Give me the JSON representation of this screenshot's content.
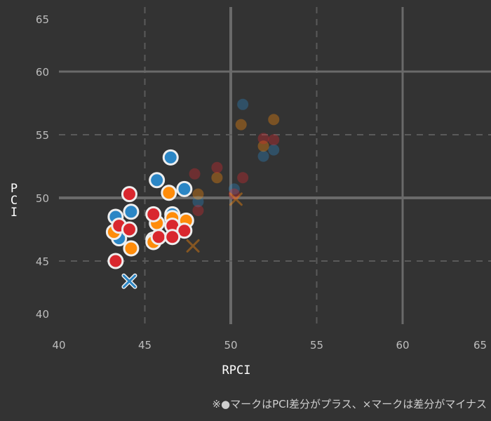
{
  "chart_data": {
    "type": "scatter",
    "title": "",
    "xlabel": "RPCI",
    "ylabel": "PCI",
    "xlim": [
      40,
      65
    ],
    "ylim": [
      40,
      65
    ],
    "xticks": [
      40,
      45,
      50,
      55,
      60,
      65
    ],
    "yticks": [
      40,
      45,
      50,
      55,
      60,
      65
    ],
    "grid": true,
    "colors": {
      "blue": "#2b86c5",
      "orange": "#ff8c0a",
      "red": "#d9272e",
      "outline": "#eeeeee"
    },
    "series": [
      {
        "name": "blue",
        "highlighted": true,
        "marker": "circle",
        "points": [
          [
            46.5,
            53.2
          ],
          [
            45.7,
            51.4
          ],
          [
            47.3,
            50.7
          ],
          [
            43.3,
            48.5
          ],
          [
            44.2,
            48.9
          ],
          [
            46.6,
            48.7
          ],
          [
            43.5,
            46.8
          ],
          [
            45.5,
            46.7
          ]
        ]
      },
      {
        "name": "orange",
        "highlighted": true,
        "marker": "circle",
        "points": [
          [
            46.4,
            50.4
          ],
          [
            43.2,
            47.3
          ],
          [
            45.7,
            48.0
          ],
          [
            47.4,
            48.2
          ],
          [
            44.2,
            46.0
          ],
          [
            45.5,
            46.5
          ],
          [
            46.6,
            48.4
          ]
        ]
      },
      {
        "name": "red",
        "highlighted": true,
        "marker": "circle",
        "points": [
          [
            44.1,
            50.3
          ],
          [
            45.5,
            48.7
          ],
          [
            43.5,
            47.8
          ],
          [
            44.1,
            47.5
          ],
          [
            46.6,
            47.8
          ],
          [
            47.3,
            47.4
          ],
          [
            45.8,
            46.9
          ],
          [
            46.6,
            46.9
          ],
          [
            43.3,
            45.0
          ]
        ]
      },
      {
        "name": "blue",
        "highlighted": true,
        "marker": "x",
        "points": [
          [
            44.1,
            43.4
          ]
        ]
      },
      {
        "name": "blue",
        "highlighted": false,
        "marker": "circle",
        "points": [
          [
            50.7,
            57.4
          ],
          [
            51.9,
            53.3
          ],
          [
            52.5,
            53.8
          ],
          [
            50.2,
            50.7
          ],
          [
            48.1,
            49.7
          ]
        ]
      },
      {
        "name": "orange",
        "highlighted": false,
        "marker": "circle",
        "points": [
          [
            50.6,
            55.8
          ],
          [
            52.5,
            56.2
          ],
          [
            51.9,
            54.1
          ],
          [
            49.2,
            51.6
          ],
          [
            48.1,
            50.3
          ]
        ]
      },
      {
        "name": "red",
        "highlighted": false,
        "marker": "circle",
        "points": [
          [
            51.9,
            54.7
          ],
          [
            52.5,
            54.6
          ],
          [
            47.9,
            51.9
          ],
          [
            49.2,
            52.4
          ],
          [
            50.7,
            51.6
          ],
          [
            50.2,
            50.3
          ],
          [
            48.1,
            49.0
          ]
        ]
      },
      {
        "name": "orange",
        "highlighted": false,
        "marker": "x",
        "points": [
          [
            47.8,
            46.2
          ],
          [
            50.3,
            49.9
          ]
        ]
      }
    ]
  },
  "note": "※●マークはPCI差分がプラス、×マークは差分がマイナス"
}
